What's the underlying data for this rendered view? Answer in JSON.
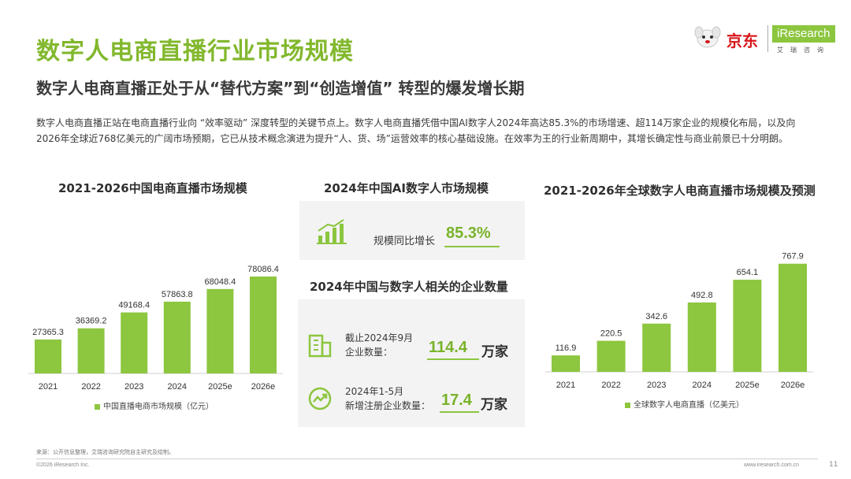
{
  "header": {
    "title": "数字人电商直播行业市场规模",
    "subtitle": "数字人电商直播正处于从“替代方案”到“创造增值” 转型的爆发增长期",
    "intro": "数字人电商直播正站在电商直播行业向 “效率驱动” 深度转型的关键节点上。数字人电商直播凭借中国AI数字人2024年高达85.3%的市场增速、超114万家企业的规模化布局，以及向2026年全球近768亿美元的广阔市场预期，它已从技术概念演进为提升“人、货、场”运营效率的核心基础设施。在效率为王的行业新周期中，其增长确定性与商业前景已十分明朗。"
  },
  "logo": {
    "jd_text": "京东",
    "iresearch_text": "iResearch",
    "iresearch_sub": "艾瑞咨询",
    "brand_green": "#8cc63f",
    "brand_red": "#d7161a"
  },
  "middle": {
    "ai_market_title": "2024年中国AI数字人市场规模",
    "growth_label": "规模同比增长",
    "growth_value": "85.3%",
    "enterprise_title": "2024年中国与数字人相关的企业数量",
    "stat1_label_line1": "截止2024年9月",
    "stat1_label_line2": "企业数量：",
    "stat1_value": "114.4",
    "stat1_unit": "万家",
    "stat2_label_line1": "2024年1-5月",
    "stat2_label_line2": "新增注册企业数量：",
    "stat2_value": "17.4",
    "stat2_unit": "万家"
  },
  "chart_data": [
    {
      "type": "bar",
      "title": "2021-2026中国电商直播市场规模",
      "categories": [
        "2021",
        "2022",
        "2023",
        "2024",
        "2025e",
        "2026e"
      ],
      "series": [
        {
          "name": "中国直播电商市场规模（亿元）",
          "values": [
            27365.3,
            36369.2,
            49168.4,
            57863.8,
            68048.4,
            78086.4
          ]
        }
      ],
      "value_labels": [
        "27365.3",
        "36369.2",
        "49168.4",
        "57863.8",
        "68048.4",
        "78086.4"
      ],
      "ylim": [
        0,
        80000
      ],
      "grid": false,
      "legend": "bottom",
      "color": "#8dc63f"
    },
    {
      "type": "bar",
      "title": "2021-2026年全球数字人电商直播市场规模及预测",
      "categories": [
        "2021",
        "2022",
        "2023",
        "2024",
        "2025e",
        "2026e"
      ],
      "series": [
        {
          "name": "全球数字人电商直播（亿美元）",
          "values": [
            116.9,
            220.5,
            342.6,
            492.8,
            654.1,
            767.9
          ]
        }
      ],
      "value_labels": [
        "116.9",
        "220.5",
        "342.6",
        "492.8",
        "654.1",
        "767.9"
      ],
      "ylim": [
        0,
        800
      ],
      "grid": false,
      "legend": "bottom",
      "color": "#8dc63f"
    }
  ],
  "footer": {
    "source": "来源：公开信息整理，艾瑞咨询研究院自主研究及绘制。",
    "copyright": "©2026 iResearch Inc.",
    "url": "www.iresearch.com.cn",
    "page": "11"
  }
}
